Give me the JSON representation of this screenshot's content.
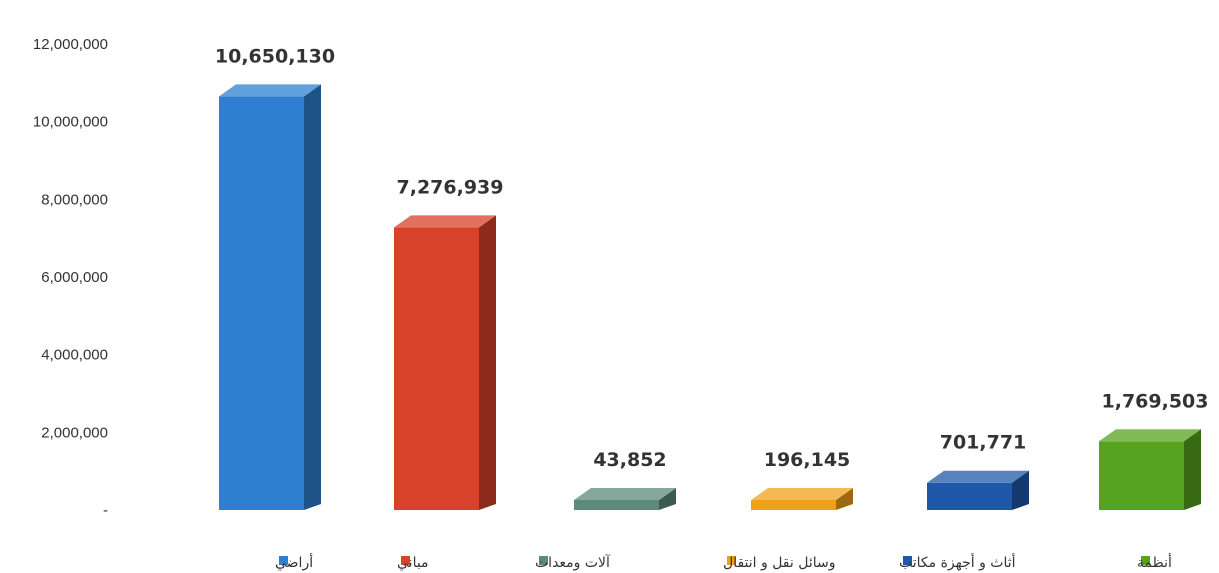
{
  "chart_data": {
    "type": "bar",
    "categories": [
      "أراضي",
      "مباني",
      "آلات ومعدات",
      "وسائل نقل و انتقال",
      "أثاث و أجهزة مكاتب",
      "أنظمة"
    ],
    "values": [
      10650130,
      7276939,
      43852,
      196145,
      701771,
      1769503
    ],
    "value_labels": [
      "10,650,130",
      "7,276,939",
      "43,852",
      "196,145",
      "701,771",
      "1,769,503"
    ],
    "colors": [
      "#2e7fd1",
      "#d8412a",
      "#5e8a7c",
      "#f0a11b",
      "#1f58a8",
      "#56a31f"
    ],
    "ylim": [
      0,
      12000000
    ],
    "yticks": [
      0,
      2000000,
      4000000,
      6000000,
      8000000,
      10000000,
      12000000
    ],
    "ytick_labels": [
      "-",
      "2,000,000",
      "4,000,000",
      "6,000,000",
      "8,000,000",
      "10,000,000",
      "12,000,000"
    ],
    "legend_position": "bottom",
    "grid": false,
    "style": "3d-bar"
  }
}
